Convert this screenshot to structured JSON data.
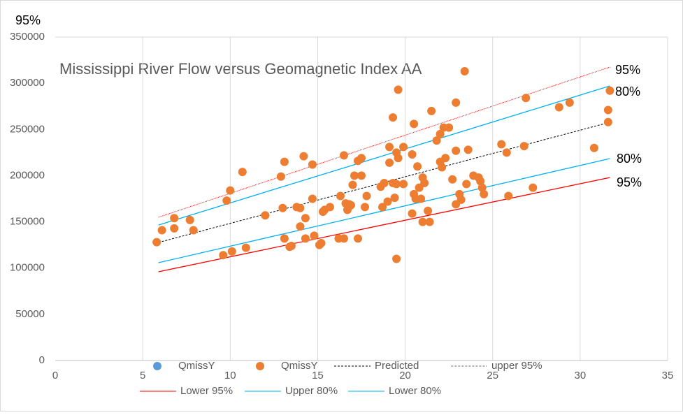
{
  "chart_data": {
    "type": "scatter",
    "title": "Mississippi River Flow versus Geomagnetic Index AA",
    "annotations": [
      "95%",
      "95%",
      "80%",
      "80%",
      "95%"
    ],
    "xlim": [
      0,
      35
    ],
    "xticks": [
      0,
      5,
      10,
      15,
      20,
      25,
      30,
      35
    ],
    "ylim": [
      0,
      350000
    ],
    "yticks": [
      0,
      50000,
      100000,
      150000,
      200000,
      250000,
      300000,
      350000
    ],
    "grid": "x",
    "series": [
      {
        "name": "QmissY",
        "kind": "points",
        "color": "#5b9bd5",
        "x": [],
        "values": []
      },
      {
        "name": "QmissY",
        "kind": "points",
        "color": "#ed7d31",
        "x": [
          5.8,
          6.1,
          6.8,
          6.8,
          7.7,
          7.9,
          9.6,
          9.8,
          10.0,
          10.1,
          10.7,
          10.9,
          12.0,
          12.9,
          13.0,
          13.1,
          13.1,
          13.4,
          13.5,
          13.8,
          14.0,
          14.0,
          14.2,
          14.3,
          14.3,
          14.7,
          14.7,
          14.8,
          15.1,
          15.2,
          15.3,
          15.4,
          15.7,
          16.2,
          16.3,
          16.5,
          16.5,
          16.6,
          16.7,
          16.8,
          16.9,
          17.0,
          17.1,
          17.3,
          17.3,
          17.5,
          17.5,
          17.7,
          17.8,
          18.6,
          18.7,
          18.8,
          19.0,
          19.1,
          19.1,
          19.3,
          19.3,
          19.4,
          19.5,
          19.5,
          19.5,
          19.6,
          19.6,
          19.9,
          19.9,
          20.4,
          20.4,
          20.5,
          20.5,
          20.6,
          20.7,
          20.8,
          20.9,
          21.0,
          21.0,
          21.1,
          21.3,
          21.4,
          21.5,
          21.8,
          22.0,
          22.0,
          22.1,
          22.2,
          22.3,
          22.5,
          22.7,
          22.9,
          22.9,
          22.9,
          23.1,
          23.2,
          23.4,
          23.5,
          23.6,
          23.9,
          24.2,
          24.3,
          24.4,
          24.5,
          25.5,
          25.8,
          25.9,
          26.8,
          26.9,
          27.3,
          28.8,
          29.4,
          30.8,
          31.6,
          31.6,
          31.7
        ],
        "values": [
          128000,
          141000,
          154000,
          143000,
          152000,
          141000,
          114000,
          173000,
          184000,
          118000,
          204000,
          122000,
          157000,
          199000,
          165000,
          215000,
          132000,
          123000,
          124000,
          166000,
          165000,
          145000,
          221000,
          154000,
          132000,
          212000,
          175000,
          135000,
          125000,
          127000,
          161000,
          163000,
          166000,
          132000,
          178000,
          222000,
          132000,
          170000,
          163000,
          169000,
          168000,
          190000,
          200000,
          216000,
          132000,
          200000,
          219000,
          166000,
          178000,
          188000,
          166000,
          192000,
          172000,
          214000,
          231000,
          263000,
          192000,
          176000,
          191000,
          110000,
          225000,
          293000,
          219000,
          191000,
          231000,
          159000,
          223000,
          256000,
          180000,
          175000,
          210000,
          187000,
          175000,
          150000,
          198000,
          192000,
          162000,
          150000,
          270000,
          238000,
          215000,
          245000,
          209000,
          252000,
          219000,
          252000,
          196000,
          169000,
          279000,
          227000,
          180000,
          174000,
          313000,
          191000,
          228000,
          200000,
          198000,
          194000,
          187000,
          180000,
          234000,
          225000,
          178000,
          232000,
          284000,
          187000,
          274000,
          279000,
          230000,
          258000,
          271000,
          292000
        ]
      },
      {
        "name": "Predicted",
        "kind": "line",
        "color": "#000000",
        "line_style": "dashed",
        "x": [
          5.9,
          31.7
        ],
        "values": [
          127700,
          257800
        ]
      },
      {
        "name": "upper 95%",
        "kind": "line",
        "color": "#ff0000",
        "line_style": "dotted",
        "x": [
          5.9,
          31.7
        ],
        "values": [
          155000,
          317500
        ]
      },
      {
        "name": "Lower 95%",
        "kind": "line",
        "color": "#ff0000",
        "line_style": "solid",
        "x": [
          5.9,
          31.7
        ],
        "values": [
          96000,
          198000
        ]
      },
      {
        "name": "Upper 80%",
        "kind": "line",
        "color": "#00b0f0",
        "line_style": "solid",
        "x": [
          5.9,
          31.7
        ],
        "values": [
          146600,
          297100
        ]
      },
      {
        "name": "Lower 80%",
        "kind": "line",
        "color": "#00b0f0",
        "line_style": "solid",
        "x": [
          5.9,
          31.7
        ],
        "values": [
          105800,
          218500
        ]
      }
    ]
  }
}
